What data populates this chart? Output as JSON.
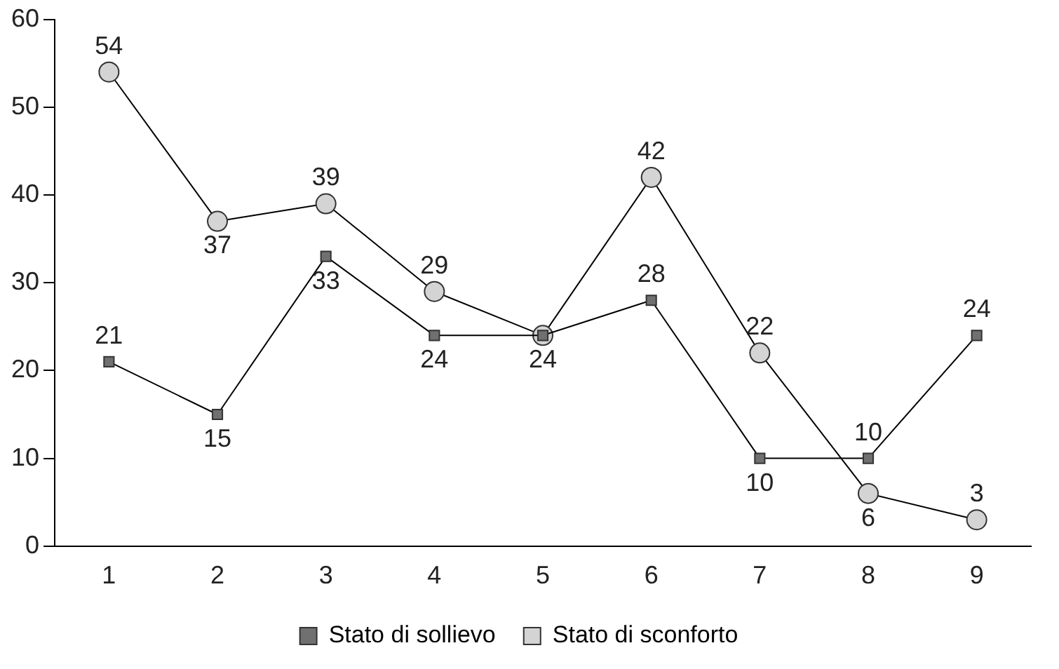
{
  "chart_data": {
    "type": "line",
    "categories": [
      "1",
      "2",
      "3",
      "4",
      "5",
      "6",
      "7",
      "8",
      "9"
    ],
    "series": [
      {
        "name": "Stato di sollievo",
        "color": "#707070",
        "marker": "square",
        "values": [
          21,
          15,
          33,
          24,
          24,
          28,
          10,
          10,
          24
        ],
        "value_labels": [
          "21",
          "15",
          "33",
          "24",
          "24",
          "28",
          "10",
          "10",
          "24"
        ]
      },
      {
        "name": "Stato di sconforto",
        "color": "#d4d4d4",
        "marker": "circle",
        "values": [
          54,
          37,
          39,
          29,
          24,
          42,
          22,
          6,
          3
        ],
        "value_labels": [
          "54",
          "37",
          "39",
          "29",
          null,
          "42",
          "22",
          "6",
          "3"
        ]
      }
    ],
    "ylim": [
      0,
      60
    ],
    "yticks": [
      0,
      10,
      20,
      30,
      40,
      50,
      60
    ],
    "grid": false,
    "legend": "bottom",
    "line_style": "solid"
  }
}
